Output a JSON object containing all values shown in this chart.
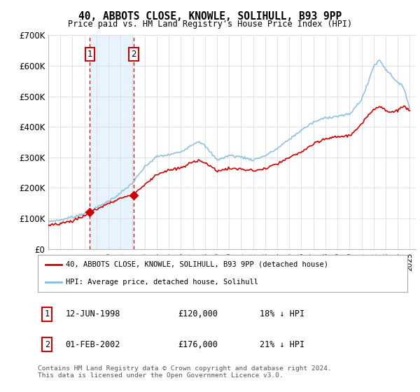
{
  "title": "40, ABBOTS CLOSE, KNOWLE, SOLIHULL, B93 9PP",
  "subtitle": "Price paid vs. HM Land Registry's House Price Index (HPI)",
  "ylim": [
    0,
    700000
  ],
  "yticks": [
    0,
    100000,
    200000,
    300000,
    400000,
    500000,
    600000,
    700000
  ],
  "ytick_labels": [
    "£0",
    "£100K",
    "£200K",
    "£300K",
    "£400K",
    "£500K",
    "£600K",
    "£700K"
  ],
  "xlim_start": 1995.0,
  "xlim_end": 2025.5,
  "line1_color": "#cc0000",
  "line2_color": "#88bbdd",
  "marker_color": "#cc0000",
  "vline_color": "#cc0000",
  "shade_color": "#ddeeff",
  "transaction1_x": 1998.44,
  "transaction1_y": 120000,
  "transaction2_x": 2002.08,
  "transaction2_y": 176000,
  "legend_line1": "40, ABBOTS CLOSE, KNOWLE, SOLIHULL, B93 9PP (detached house)",
  "legend_line2": "HPI: Average price, detached house, Solihull",
  "table_rows": [
    {
      "num": "1",
      "date": "12-JUN-1998",
      "price": "£120,000",
      "hpi": "18% ↓ HPI"
    },
    {
      "num": "2",
      "date": "01-FEB-2002",
      "price": "£176,000",
      "hpi": "21% ↓ HPI"
    }
  ],
  "footnote": "Contains HM Land Registry data © Crown copyright and database right 2024.\nThis data is licensed under the Open Government Licence v3.0.",
  "background_color": "#ffffff",
  "grid_color": "#dddddd"
}
